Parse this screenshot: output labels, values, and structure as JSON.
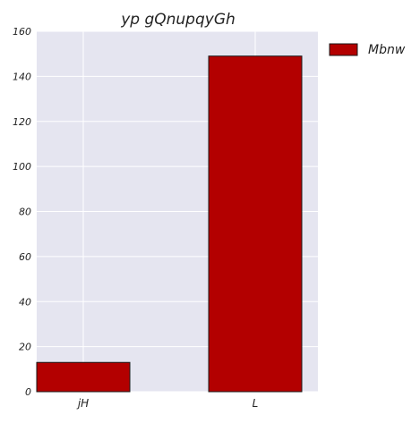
{
  "chart_data": {
    "type": "bar",
    "title": "yp gQnupqyGh",
    "xlabel": "",
    "ylabel": "",
    "categories": [
      "jH",
      "L"
    ],
    "series": [
      {
        "name": "Mbnw",
        "values": [
          13,
          149
        ],
        "color": "#b30000"
      }
    ],
    "ylim": [
      0,
      160
    ],
    "yticks": [
      0,
      20,
      40,
      60,
      80,
      100,
      120,
      140,
      160
    ],
    "grid": true,
    "legend_position": "top-right, outside plot",
    "background_color": "#e5e5f0",
    "gridline_color": "#ffffff"
  }
}
